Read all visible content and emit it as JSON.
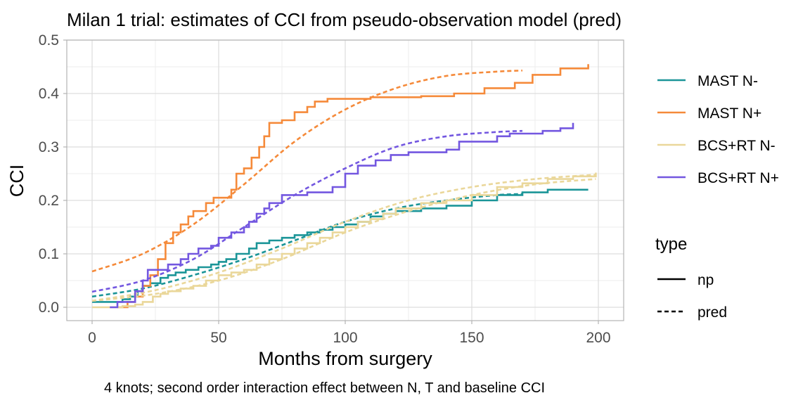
{
  "chart_data": {
    "type": "line",
    "title": "Milan 1 trial: estimates  of CCI from pseudo-observation model (pred)",
    "subtitle_caption": "4 knots; second order interaction effect between N, T and baseline CCI",
    "xlabel": "Months from surgery",
    "ylabel": "CCI",
    "xlim": [
      -10,
      210
    ],
    "ylim": [
      -0.025,
      0.5
    ],
    "x_ticks": [
      0,
      50,
      100,
      150,
      200
    ],
    "x_tick_labels": [
      "0",
      "50",
      "100",
      "150",
      "200"
    ],
    "y_ticks": [
      0.0,
      0.1,
      0.2,
      0.3,
      0.4,
      0.5
    ],
    "y_tick_labels": [
      "0.0",
      "0.1",
      "0.2",
      "0.3",
      "0.4",
      "0.5"
    ],
    "grid": true,
    "legend_position": "right",
    "legend_group": {
      "labels": [
        "MAST N-",
        "MAST N+",
        "BCS+RT N-",
        "BCS+RT N+"
      ]
    },
    "legend_type": {
      "title": "type",
      "labels": [
        "np",
        "pred"
      ]
    },
    "series": [
      {
        "name": "MAST N-",
        "type": "np",
        "color": "#1b9598",
        "points": [
          [
            0,
            0.01
          ],
          [
            8,
            0.01
          ],
          [
            12,
            0.015
          ],
          [
            15,
            0.02
          ],
          [
            18,
            0.03
          ],
          [
            20,
            0.04
          ],
          [
            23,
            0.045
          ],
          [
            27,
            0.055
          ],
          [
            30,
            0.06
          ],
          [
            33,
            0.065
          ],
          [
            37,
            0.07
          ],
          [
            42,
            0.075
          ],
          [
            47,
            0.08
          ],
          [
            50,
            0.085
          ],
          [
            53,
            0.09
          ],
          [
            57,
            0.1
          ],
          [
            62,
            0.11
          ],
          [
            65,
            0.12
          ],
          [
            70,
            0.125
          ],
          [
            75,
            0.13
          ],
          [
            80,
            0.135
          ],
          [
            85,
            0.14
          ],
          [
            90,
            0.145
          ],
          [
            95,
            0.15
          ],
          [
            100,
            0.155
          ],
          [
            105,
            0.16
          ],
          [
            110,
            0.17
          ],
          [
            115,
            0.175
          ],
          [
            120,
            0.18
          ],
          [
            130,
            0.185
          ],
          [
            140,
            0.19
          ],
          [
            150,
            0.2
          ],
          [
            160,
            0.21
          ],
          [
            170,
            0.215
          ],
          [
            180,
            0.22
          ],
          [
            196,
            0.22
          ]
        ]
      },
      {
        "name": "MAST N-",
        "type": "pred",
        "color": "#1b9598",
        "points": [
          [
            0,
            0.02
          ],
          [
            20,
            0.035
          ],
          [
            40,
            0.06
          ],
          [
            60,
            0.09
          ],
          [
            80,
            0.125
          ],
          [
            100,
            0.16
          ],
          [
            120,
            0.185
          ],
          [
            140,
            0.2
          ],
          [
            160,
            0.21
          ],
          [
            170,
            0.212
          ]
        ]
      },
      {
        "name": "MAST N+",
        "type": "np",
        "color": "#f58a3a",
        "points": [
          [
            10,
            0.0
          ],
          [
            14,
            0.01
          ],
          [
            17,
            0.02
          ],
          [
            20,
            0.04
          ],
          [
            23,
            0.06
          ],
          [
            26,
            0.09
          ],
          [
            29,
            0.12
          ],
          [
            32,
            0.14
          ],
          [
            35,
            0.155
          ],
          [
            38,
            0.17
          ],
          [
            40,
            0.18
          ],
          [
            45,
            0.195
          ],
          [
            48,
            0.205
          ],
          [
            55,
            0.22
          ],
          [
            57,
            0.25
          ],
          [
            60,
            0.26
          ],
          [
            63,
            0.28
          ],
          [
            66,
            0.3
          ],
          [
            68,
            0.32
          ],
          [
            70,
            0.345
          ],
          [
            75,
            0.35
          ],
          [
            80,
            0.365
          ],
          [
            85,
            0.375
          ],
          [
            88,
            0.385
          ],
          [
            93,
            0.39
          ],
          [
            100,
            0.39
          ],
          [
            110,
            0.393
          ],
          [
            120,
            0.393
          ],
          [
            130,
            0.395
          ],
          [
            143,
            0.4
          ],
          [
            155,
            0.41
          ],
          [
            167,
            0.42
          ],
          [
            174,
            0.435
          ],
          [
            185,
            0.447
          ],
          [
            196,
            0.455
          ]
        ]
      },
      {
        "name": "MAST N+",
        "type": "pred",
        "color": "#f58a3a",
        "points": [
          [
            0,
            0.067
          ],
          [
            20,
            0.1
          ],
          [
            40,
            0.155
          ],
          [
            60,
            0.23
          ],
          [
            80,
            0.31
          ],
          [
            100,
            0.37
          ],
          [
            120,
            0.41
          ],
          [
            140,
            0.433
          ],
          [
            160,
            0.441
          ],
          [
            170,
            0.443
          ]
        ]
      },
      {
        "name": "BCS+RT N-",
        "type": "np",
        "color": "#ead79a",
        "points": [
          [
            0,
            0.0
          ],
          [
            7,
            0.0
          ],
          [
            12,
            0.002
          ],
          [
            17,
            0.005
          ],
          [
            20,
            0.01
          ],
          [
            24,
            0.02
          ],
          [
            27,
            0.025
          ],
          [
            30,
            0.03
          ],
          [
            35,
            0.035
          ],
          [
            40,
            0.04
          ],
          [
            45,
            0.05
          ],
          [
            50,
            0.06
          ],
          [
            55,
            0.065
          ],
          [
            60,
            0.07
          ],
          [
            65,
            0.08
          ],
          [
            70,
            0.09
          ],
          [
            75,
            0.1
          ],
          [
            80,
            0.11
          ],
          [
            85,
            0.12
          ],
          [
            90,
            0.13
          ],
          [
            95,
            0.14
          ],
          [
            100,
            0.15
          ],
          [
            105,
            0.16
          ],
          [
            110,
            0.165
          ],
          [
            115,
            0.175
          ],
          [
            120,
            0.185
          ],
          [
            130,
            0.195
          ],
          [
            140,
            0.2
          ],
          [
            150,
            0.21
          ],
          [
            160,
            0.225
          ],
          [
            170,
            0.232
          ],
          [
            180,
            0.24
          ],
          [
            190,
            0.245
          ],
          [
            199,
            0.252
          ]
        ]
      },
      {
        "name": "BCS+RT N-",
        "type": "pred",
        "color": "#ead79a",
        "points": [
          [
            0,
            0.012
          ],
          [
            25,
            0.025
          ],
          [
            50,
            0.05
          ],
          [
            75,
            0.09
          ],
          [
            100,
            0.14
          ],
          [
            125,
            0.18
          ],
          [
            150,
            0.21
          ],
          [
            175,
            0.23
          ],
          [
            199,
            0.24
          ]
        ]
      },
      {
        "name": "BCS+RT N-",
        "type": "pred",
        "color": "#ead79a",
        "points": [
          [
            0,
            0.012
          ],
          [
            25,
            0.032
          ],
          [
            50,
            0.065
          ],
          [
            75,
            0.11
          ],
          [
            100,
            0.16
          ],
          [
            125,
            0.2
          ],
          [
            150,
            0.225
          ],
          [
            175,
            0.24
          ],
          [
            199,
            0.248
          ]
        ]
      },
      {
        "name": "BCS+RT N+",
        "type": "np",
        "color": "#7357e0",
        "points": [
          [
            7,
            0.0
          ],
          [
            10,
            0.01
          ],
          [
            17,
            0.03
          ],
          [
            20,
            0.05
          ],
          [
            22,
            0.07
          ],
          [
            25,
            0.07
          ],
          [
            30,
            0.08
          ],
          [
            35,
            0.09
          ],
          [
            38,
            0.1
          ],
          [
            42,
            0.11
          ],
          [
            47,
            0.115
          ],
          [
            50,
            0.13
          ],
          [
            55,
            0.14
          ],
          [
            60,
            0.15
          ],
          [
            62,
            0.16
          ],
          [
            65,
            0.175
          ],
          [
            68,
            0.185
          ],
          [
            70,
            0.195
          ],
          [
            75,
            0.21
          ],
          [
            85,
            0.215
          ],
          [
            95,
            0.225
          ],
          [
            100,
            0.25
          ],
          [
            105,
            0.265
          ],
          [
            112,
            0.275
          ],
          [
            118,
            0.285
          ],
          [
            125,
            0.29
          ],
          [
            140,
            0.295
          ],
          [
            145,
            0.31
          ],
          [
            160,
            0.32
          ],
          [
            165,
            0.325
          ],
          [
            178,
            0.33
          ],
          [
            185,
            0.335
          ],
          [
            190,
            0.345
          ]
        ]
      },
      {
        "name": "BCS+RT N+",
        "type": "pred",
        "color": "#7357e0",
        "points": [
          [
            0,
            0.029
          ],
          [
            20,
            0.05
          ],
          [
            40,
            0.09
          ],
          [
            60,
            0.15
          ],
          [
            80,
            0.21
          ],
          [
            100,
            0.26
          ],
          [
            120,
            0.3
          ],
          [
            140,
            0.32
          ],
          [
            160,
            0.328
          ],
          [
            170,
            0.33
          ]
        ]
      }
    ]
  },
  "colors": {
    "MAST N-": "#1b9598",
    "MAST N+": "#f58a3a",
    "BCS+RT N-": "#ead79a",
    "BCS+RT N+": "#7357e0"
  }
}
